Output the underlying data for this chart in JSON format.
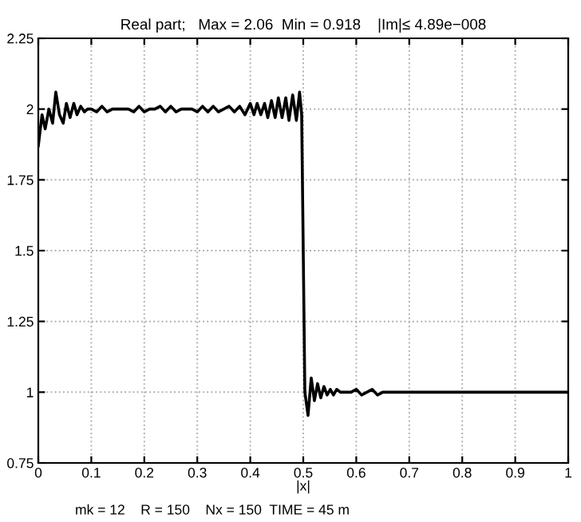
{
  "chart_data": {
    "type": "line",
    "title": "Real part;   Max = 2.06  Min = 0.918    |Im|≤ 4.89e−008",
    "xlabel": "|x|",
    "annotations": [
      "mk = 12    R = 150    Nx = 150  TIME = 45 m"
    ],
    "series": [
      {
        "color": "#000000",
        "x": [
          0,
          0.007,
          0.013,
          0.02,
          0.027,
          0.033,
          0.04,
          0.047,
          0.053,
          0.06,
          0.067,
          0.073,
          0.08,
          0.087,
          0.093,
          0.1,
          0.11,
          0.12,
          0.13,
          0.14,
          0.15,
          0.16,
          0.17,
          0.18,
          0.19,
          0.2,
          0.21,
          0.22,
          0.23,
          0.24,
          0.25,
          0.26,
          0.27,
          0.28,
          0.29,
          0.3,
          0.31,
          0.32,
          0.33,
          0.34,
          0.35,
          0.36,
          0.37,
          0.38,
          0.39,
          0.4,
          0.407,
          0.413,
          0.42,
          0.427,
          0.433,
          0.44,
          0.447,
          0.453,
          0.46,
          0.467,
          0.473,
          0.48,
          0.487,
          0.493,
          0.497,
          0.503,
          0.509,
          0.515,
          0.521,
          0.527,
          0.533,
          0.539,
          0.545,
          0.551,
          0.557,
          0.563,
          0.57,
          0.58,
          0.59,
          0.6,
          0.61,
          0.62,
          0.63,
          0.64,
          0.65,
          0.66,
          0.67,
          0.68,
          0.69,
          0.7,
          0.72,
          0.74,
          0.76,
          0.78,
          0.8,
          0.84,
          0.88,
          0.92,
          0.96,
          1
        ],
        "values": [
          1.87,
          1.98,
          1.93,
          2.0,
          1.95,
          2.06,
          1.98,
          1.95,
          2.02,
          1.97,
          2.02,
          1.98,
          2.01,
          1.99,
          2.0,
          2.0,
          1.99,
          2.01,
          1.99,
          2.0,
          2.0,
          2.0,
          2.0,
          1.99,
          2.01,
          1.99,
          2.0,
          2.0,
          2.01,
          1.99,
          2.01,
          1.99,
          2.0,
          2.0,
          2.0,
          1.99,
          2.01,
          1.99,
          2.01,
          1.99,
          2.0,
          2.01,
          1.99,
          2.01,
          1.98,
          2.02,
          1.98,
          2.02,
          1.98,
          2.02,
          1.97,
          2.03,
          1.97,
          2.04,
          1.97,
          2.04,
          1.96,
          2.05,
          1.96,
          2.06,
          1.98,
          1.0,
          0.918,
          1.05,
          0.97,
          1.03,
          0.98,
          1.02,
          0.99,
          1.01,
          0.99,
          1.01,
          1.0,
          1.0,
          1.0,
          1.01,
          0.99,
          1.0,
          1.01,
          0.99,
          1.0,
          1.0,
          1.0,
          1.0,
          1.0,
          1.0,
          1.0,
          1.0,
          1.0,
          1.0,
          1.0,
          1.0,
          1.0,
          1.0,
          1.0,
          1.0
        ]
      }
    ],
    "xlim": [
      0,
      1
    ],
    "ylim": [
      0.75,
      2.25
    ],
    "xticks": [
      0,
      0.1,
      0.2,
      0.3,
      0.4,
      0.5,
      0.6,
      0.7,
      0.8,
      0.9,
      1
    ],
    "yticks": [
      0.75,
      1,
      1.25,
      1.5,
      1.75,
      2,
      2.25
    ],
    "grid": true,
    "line_style": "solid",
    "marker": "none"
  }
}
